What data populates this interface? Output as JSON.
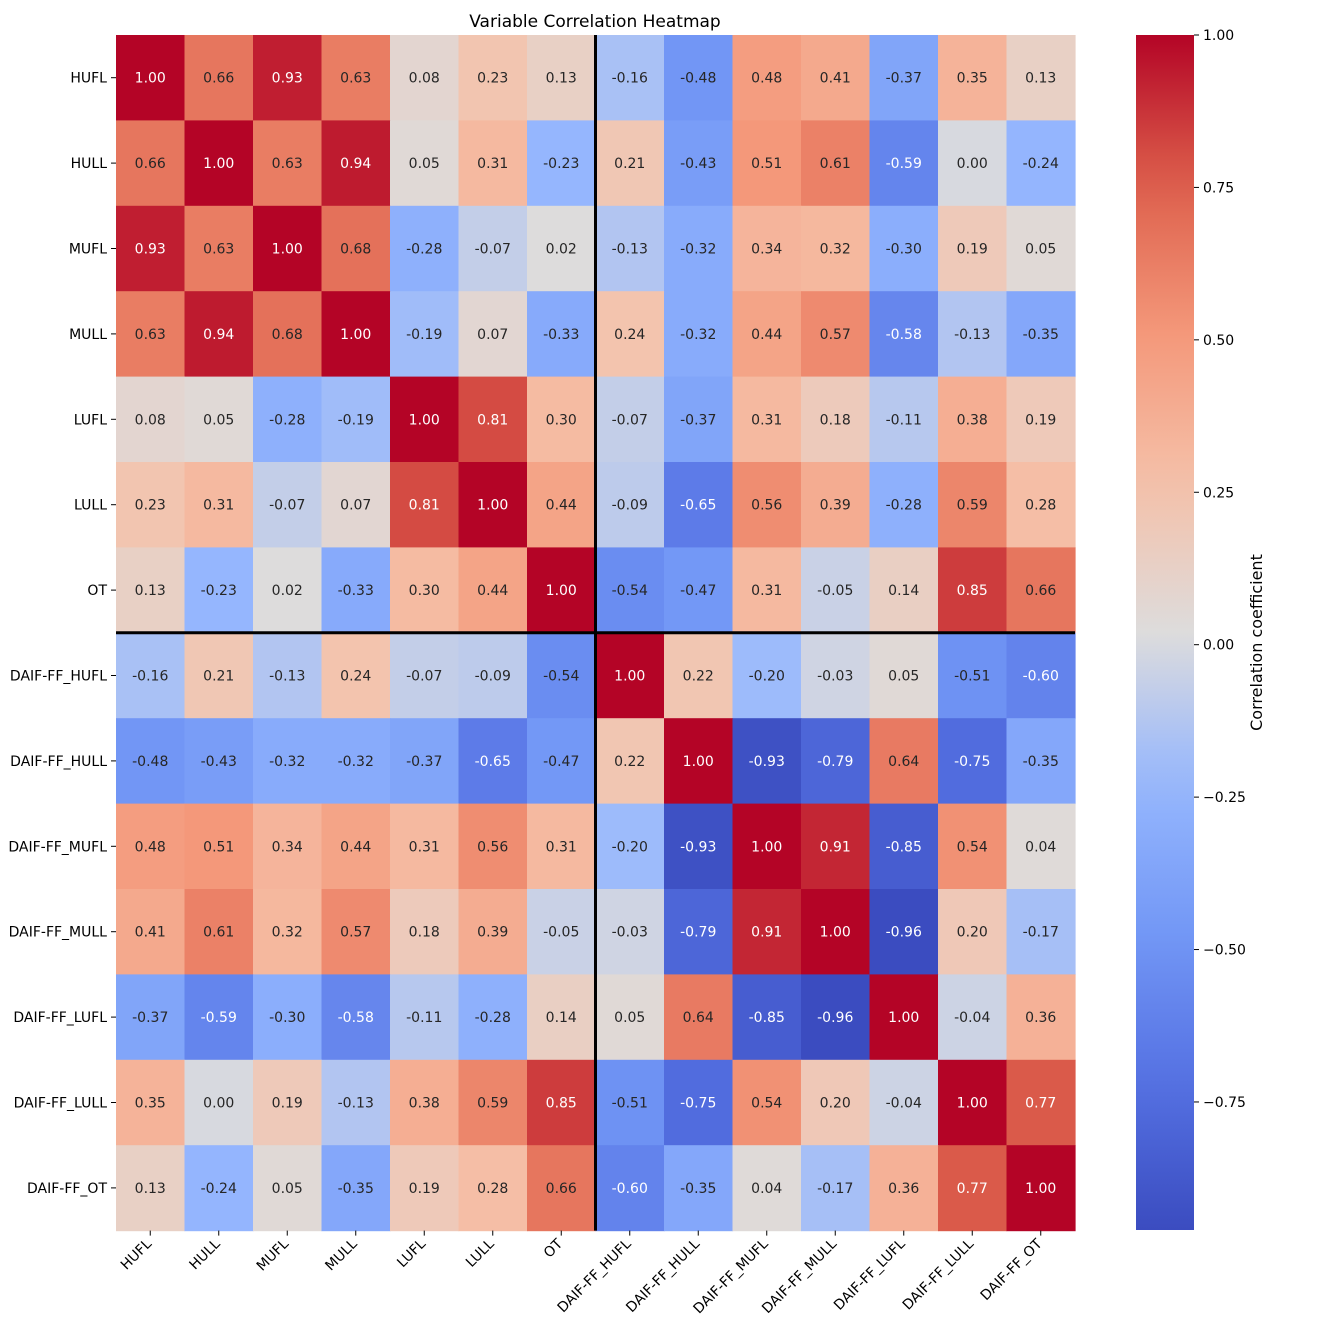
{
  "chart_data": {
    "type": "heatmap",
    "title": "Variable Correlation Heatmap",
    "variables": [
      "HUFL",
      "HULL",
      "MUFL",
      "MULL",
      "LUFL",
      "LULL",
      "OT",
      "DAIF-FF_HUFL",
      "DAIF-FF_HULL",
      "DAIF-FF_MUFL",
      "DAIF-FF_MULL",
      "DAIF-FF_LUFL",
      "DAIF-FF_LULL",
      "DAIF-FF_OT"
    ],
    "values": [
      [
        1.0,
        0.66,
        0.93,
        0.63,
        0.08,
        0.23,
        0.13,
        -0.16,
        -0.48,
        0.48,
        0.41,
        -0.37,
        0.35,
        0.13
      ],
      [
        0.66,
        1.0,
        0.63,
        0.94,
        0.05,
        0.31,
        -0.23,
        0.21,
        -0.43,
        0.51,
        0.61,
        -0.59,
        0.0,
        -0.24
      ],
      [
        0.93,
        0.63,
        1.0,
        0.68,
        -0.28,
        -0.07,
        0.02,
        -0.13,
        -0.32,
        0.34,
        0.32,
        -0.3,
        0.19,
        0.05
      ],
      [
        0.63,
        0.94,
        0.68,
        1.0,
        -0.19,
        0.07,
        -0.33,
        0.24,
        -0.32,
        0.44,
        0.57,
        -0.58,
        -0.13,
        -0.35
      ],
      [
        0.08,
        0.05,
        -0.28,
        -0.19,
        1.0,
        0.81,
        0.3,
        -0.07,
        -0.37,
        0.31,
        0.18,
        -0.11,
        0.38,
        0.19
      ],
      [
        0.23,
        0.31,
        -0.07,
        0.07,
        0.81,
        1.0,
        0.44,
        -0.09,
        -0.65,
        0.56,
        0.39,
        -0.28,
        0.59,
        0.28
      ],
      [
        0.13,
        -0.23,
        0.02,
        -0.33,
        0.3,
        0.44,
        1.0,
        -0.54,
        -0.47,
        0.31,
        -0.05,
        0.14,
        0.85,
        0.66
      ],
      [
        -0.16,
        0.21,
        -0.13,
        0.24,
        -0.07,
        -0.09,
        -0.54,
        1.0,
        0.22,
        -0.2,
        -0.03,
        0.05,
        -0.51,
        -0.6
      ],
      [
        -0.48,
        -0.43,
        -0.32,
        -0.32,
        -0.37,
        -0.65,
        -0.47,
        0.22,
        1.0,
        -0.93,
        -0.79,
        0.64,
        -0.75,
        -0.35
      ],
      [
        0.48,
        0.51,
        0.34,
        0.44,
        0.31,
        0.56,
        0.31,
        -0.2,
        -0.93,
        1.0,
        0.91,
        -0.85,
        0.54,
        0.04
      ],
      [
        0.41,
        0.61,
        0.32,
        0.57,
        0.18,
        0.39,
        -0.05,
        -0.03,
        -0.79,
        0.91,
        1.0,
        -0.96,
        0.2,
        -0.17
      ],
      [
        -0.37,
        -0.59,
        -0.3,
        -0.58,
        -0.11,
        -0.28,
        0.14,
        0.05,
        0.64,
        -0.85,
        -0.96,
        1.0,
        -0.04,
        0.36
      ],
      [
        0.35,
        0.0,
        0.19,
        -0.13,
        0.38,
        0.59,
        0.85,
        -0.51,
        -0.75,
        0.54,
        0.2,
        -0.04,
        1.0,
        0.77
      ],
      [
        0.13,
        -0.24,
        0.05,
        -0.35,
        0.19,
        0.28,
        0.66,
        -0.6,
        -0.35,
        0.04,
        -0.17,
        0.36,
        0.77,
        1.0
      ]
    ],
    "colormap": "coolwarm",
    "vmin": -0.96,
    "vmax": 1.0,
    "colorbar": {
      "label": "Correlation coefficient",
      "ticks": [
        1.0,
        0.75,
        0.5,
        0.25,
        0.0,
        -0.25,
        -0.5,
        -0.75
      ],
      "tick_labels": [
        "1.00",
        "0.75",
        "0.50",
        "0.25",
        "0.00",
        "−0.25",
        "−0.50",
        "−0.75"
      ]
    },
    "divider_after_index": 7,
    "grid": false
  }
}
